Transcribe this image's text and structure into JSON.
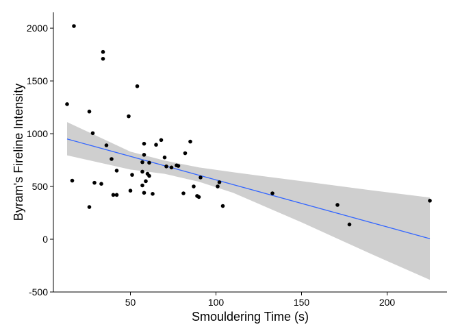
{
  "chart_data": {
    "type": "scatter",
    "xlabel": "Smouldering Time (s)",
    "ylabel": "Byram's Fireline Intensity",
    "xlim": [
      5,
      235
    ],
    "ylim": [
      -500,
      2150
    ],
    "x_ticks": [
      50,
      100,
      150,
      200
    ],
    "y_ticks": [
      -500,
      0,
      500,
      1000,
      1500,
      2000
    ],
    "x_tick_labels": [
      "50",
      "100",
      "150",
      "200"
    ],
    "y_tick_labels": [
      "-500",
      "0",
      "500",
      "1000",
      "1500",
      "2000"
    ],
    "grid": false,
    "colors": {
      "points": "#000000",
      "fit_line": "#3366ff",
      "confidence_band": "#cccccc"
    },
    "points": [
      {
        "x": 13,
        "y": 1280
      },
      {
        "x": 16,
        "y": 555
      },
      {
        "x": 17,
        "y": 2020
      },
      {
        "x": 26,
        "y": 1210
      },
      {
        "x": 26,
        "y": 305
      },
      {
        "x": 28,
        "y": 1005
      },
      {
        "x": 29,
        "y": 535
      },
      {
        "x": 33,
        "y": 525
      },
      {
        "x": 34,
        "y": 1710
      },
      {
        "x": 34,
        "y": 1775
      },
      {
        "x": 36,
        "y": 890
      },
      {
        "x": 39,
        "y": 760
      },
      {
        "x": 40,
        "y": 420
      },
      {
        "x": 42,
        "y": 420
      },
      {
        "x": 42,
        "y": 650
      },
      {
        "x": 49,
        "y": 1165
      },
      {
        "x": 50,
        "y": 460
      },
      {
        "x": 51,
        "y": 610
      },
      {
        "x": 54,
        "y": 1450
      },
      {
        "x": 57,
        "y": 640
      },
      {
        "x": 57,
        "y": 510
      },
      {
        "x": 57,
        "y": 730
      },
      {
        "x": 58,
        "y": 905
      },
      {
        "x": 58,
        "y": 800
      },
      {
        "x": 58,
        "y": 440
      },
      {
        "x": 59,
        "y": 550
      },
      {
        "x": 60,
        "y": 620
      },
      {
        "x": 61,
        "y": 600
      },
      {
        "x": 61,
        "y": 725
      },
      {
        "x": 63,
        "y": 430
      },
      {
        "x": 65,
        "y": 895
      },
      {
        "x": 68,
        "y": 940
      },
      {
        "x": 70,
        "y": 775
      },
      {
        "x": 71,
        "y": 690
      },
      {
        "x": 74,
        "y": 680
      },
      {
        "x": 77,
        "y": 700
      },
      {
        "x": 78,
        "y": 695
      },
      {
        "x": 81,
        "y": 435
      },
      {
        "x": 82,
        "y": 815
      },
      {
        "x": 85,
        "y": 925
      },
      {
        "x": 87,
        "y": 500
      },
      {
        "x": 89,
        "y": 410
      },
      {
        "x": 90,
        "y": 400
      },
      {
        "x": 91,
        "y": 585
      },
      {
        "x": 101,
        "y": 500
      },
      {
        "x": 102,
        "y": 540
      },
      {
        "x": 104,
        "y": 315
      },
      {
        "x": 133,
        "y": 435
      },
      {
        "x": 171,
        "y": 325
      },
      {
        "x": 178,
        "y": 140
      },
      {
        "x": 225,
        "y": 365
      }
    ],
    "fit_line": [
      {
        "x": 13,
        "y": 950
      },
      {
        "x": 225,
        "y": 5
      }
    ],
    "confidence_band": [
      {
        "x": 13,
        "lower": 795,
        "upper": 1110
      },
      {
        "x": 50,
        "lower": 660,
        "upper": 830
      },
      {
        "x": 70,
        "lower": 620,
        "upper": 745
      },
      {
        "x": 90,
        "lower": 545,
        "upper": 680
      },
      {
        "x": 110,
        "lower": 440,
        "upper": 635
      },
      {
        "x": 150,
        "lower": 160,
        "upper": 550
      },
      {
        "x": 190,
        "lower": -135,
        "upper": 465
      },
      {
        "x": 225,
        "lower": -385,
        "upper": 395
      }
    ]
  }
}
